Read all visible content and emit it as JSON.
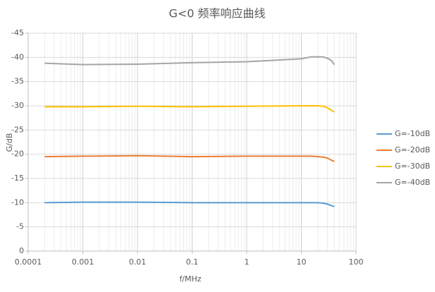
{
  "chart_data": {
    "type": "line",
    "title": "G<0 频率响应曲线",
    "x_label": "f/MHz",
    "y_label": "G/dB",
    "x": [
      0.0002,
      0.001,
      0.01,
      0.1,
      1,
      10,
      15,
      20,
      25,
      30,
      35,
      40
    ],
    "series": [
      {
        "name": "G=-10dB",
        "color": "#5b9bd5",
        "values": [
          -10.0,
          -10.1,
          -10.1,
          -10.0,
          -10.0,
          -10.0,
          -10.0,
          -10.0,
          -9.9,
          -9.7,
          -9.4,
          -9.2
        ]
      },
      {
        "name": "G=-20dB",
        "color": "#ed7d31",
        "values": [
          -19.5,
          -19.6,
          -19.7,
          -19.5,
          -19.6,
          -19.6,
          -19.6,
          -19.5,
          -19.4,
          -19.2,
          -18.8,
          -18.5
        ]
      },
      {
        "name": "G=-30dB",
        "color": "#ffc000",
        "values": [
          -29.8,
          -29.8,
          -29.9,
          -29.8,
          -29.9,
          -30.0,
          -30.0,
          -30.0,
          -29.9,
          -29.6,
          -29.1,
          -28.7
        ]
      },
      {
        "name": "G=-40dB",
        "color": "#a5a5a5",
        "values": [
          -38.8,
          -38.5,
          -38.6,
          -38.9,
          -39.1,
          -39.7,
          -40.1,
          -40.1,
          -40.1,
          -39.8,
          -39.4,
          -38.5
        ]
      }
    ],
    "xlim": [
      0.0001,
      100
    ],
    "xticks": [
      0.0001,
      0.001,
      0.01,
      0.1,
      1,
      10,
      100
    ],
    "xscale": "log",
    "ylim": [
      0,
      -45
    ],
    "yticks": [
      0,
      -5,
      -10,
      -15,
      -20,
      -25,
      -30,
      -35,
      -40,
      -45
    ],
    "grid": true,
    "legend": "right"
  }
}
